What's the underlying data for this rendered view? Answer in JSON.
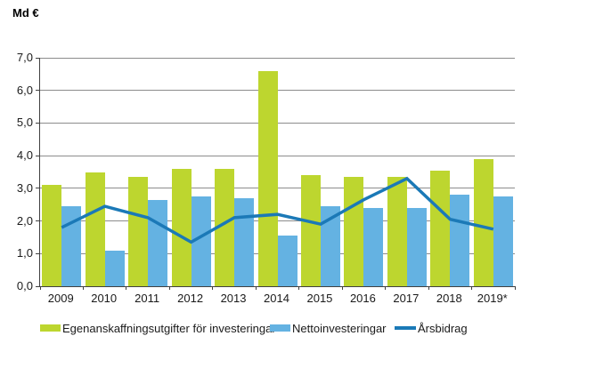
{
  "title": "Md €",
  "chart_data": {
    "type": "bar+line",
    "title": "Md €",
    "ylabel": "Md €",
    "xlabel": "",
    "categories": [
      "2009",
      "2010",
      "2011",
      "2012",
      "2013",
      "2014",
      "2015",
      "2016",
      "2017",
      "2018",
      "2019*"
    ],
    "series": [
      {
        "name": "Egenanskaffningsutgifter för investeringar",
        "type": "bar",
        "color": "#bdd62f",
        "values": [
          3.1,
          3.5,
          3.35,
          3.6,
          3.6,
          6.6,
          3.4,
          3.35,
          3.35,
          3.55,
          3.9
        ]
      },
      {
        "name": "Nettoinvesteringar",
        "type": "bar",
        "color": "#64b2e2",
        "values": [
          2.45,
          1.1,
          2.65,
          2.75,
          2.7,
          1.55,
          2.45,
          2.4,
          2.4,
          2.8,
          2.75
        ]
      },
      {
        "name": "Årsbidrag",
        "type": "line",
        "color": "#1b79b7",
        "values": [
          1.8,
          2.45,
          2.1,
          1.35,
          2.1,
          2.2,
          1.9,
          2.65,
          3.3,
          2.05,
          1.75
        ]
      }
    ],
    "ylim": [
      0,
      7
    ],
    "ytick_step": 1,
    "ytick_labels": [
      "0,0",
      "1,0",
      "2,0",
      "3,0",
      "4,0",
      "5,0",
      "6,0",
      "7,0"
    ],
    "grid": true,
    "legend_position": "bottom"
  },
  "colors": {
    "grid": "#8c8c8c",
    "axis": "#404040",
    "text": "#1a1a1a",
    "background": "#ffffff"
  }
}
